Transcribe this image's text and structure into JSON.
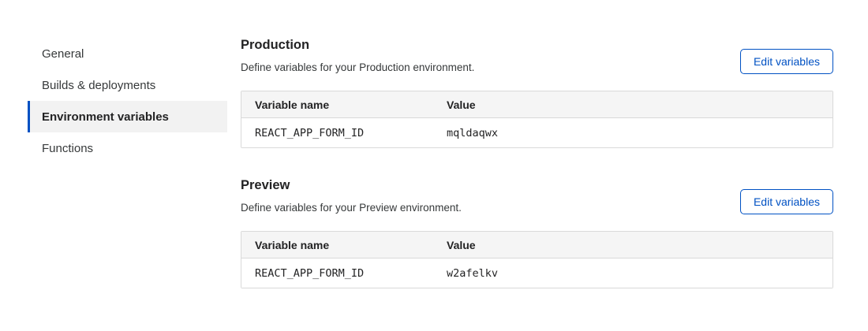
{
  "colors": {
    "accent": "#0051c3",
    "sidebar_active_bg": "#f2f2f2",
    "table_header_bg": "#f5f5f5",
    "table_border": "#d9d9d9",
    "text_primary": "#232324",
    "text_secondary": "#36393a"
  },
  "sidebar": {
    "items": [
      {
        "label": "General",
        "active": false
      },
      {
        "label": "Builds & deployments",
        "active": false
      },
      {
        "label": "Environment variables",
        "active": true
      },
      {
        "label": "Functions",
        "active": false
      }
    ]
  },
  "sections": [
    {
      "title": "Production",
      "description": "Define variables for your Production environment.",
      "button_label": "Edit variables",
      "table": {
        "columns": [
          "Variable name",
          "Value"
        ],
        "rows": [
          {
            "name": "REACT_APP_FORM_ID",
            "value": "mqldaqwx"
          }
        ]
      }
    },
    {
      "title": "Preview",
      "description": "Define variables for your Preview environment.",
      "button_label": "Edit variables",
      "table": {
        "columns": [
          "Variable name",
          "Value"
        ],
        "rows": [
          {
            "name": "REACT_APP_FORM_ID",
            "value": "w2afelkv"
          }
        ]
      }
    }
  ]
}
